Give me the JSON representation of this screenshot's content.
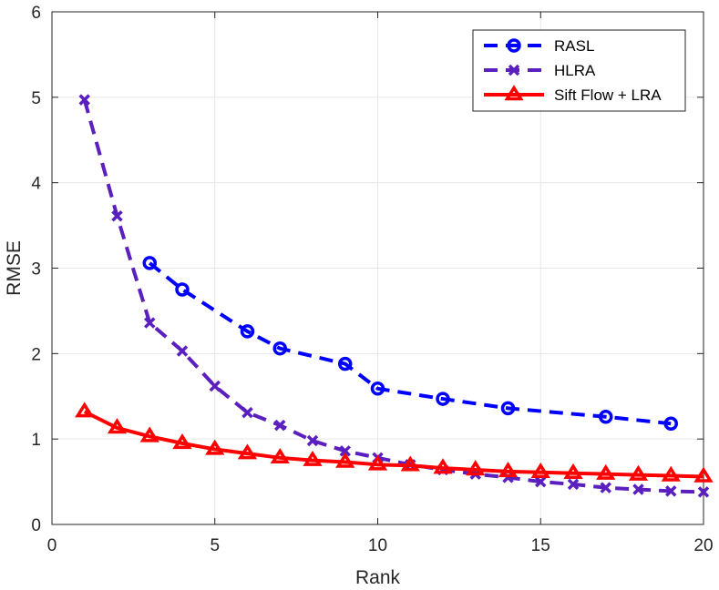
{
  "chart_data": {
    "type": "line",
    "title": "",
    "xlabel": "Rank",
    "ylabel": "RMSE",
    "xlim": [
      0,
      20
    ],
    "ylim": [
      0,
      6
    ],
    "xticks": [
      "0",
      "5",
      "10",
      "15",
      "20"
    ],
    "yticks": [
      "0",
      "1",
      "2",
      "3",
      "4",
      "5",
      "6"
    ],
    "grid": true,
    "legend_position": "top-right",
    "series": [
      {
        "name": "RASL",
        "color": "#0000ff",
        "line_style": "dashed",
        "marker": "circle",
        "x": [
          3,
          4,
          6,
          7,
          9,
          10,
          12,
          14,
          17,
          19
        ],
        "y": [
          3.06,
          2.75,
          2.26,
          2.06,
          1.88,
          1.59,
          1.47,
          1.36,
          1.26,
          1.18
        ]
      },
      {
        "name": "HLRA",
        "color": "#5b1fbf",
        "line_style": "dashed",
        "marker": "x",
        "x": [
          1,
          2,
          3,
          4,
          5,
          6,
          7,
          8,
          9,
          10,
          11,
          12,
          13,
          14,
          15,
          16,
          17,
          18,
          19,
          20
        ],
        "y": [
          4.97,
          3.61,
          2.36,
          2.03,
          1.62,
          1.31,
          1.16,
          0.98,
          0.86,
          0.78,
          0.7,
          0.64,
          0.59,
          0.55,
          0.5,
          0.47,
          0.43,
          0.41,
          0.39,
          0.38
        ]
      },
      {
        "name": "Sift Flow + LRA",
        "color": "#ff0000",
        "line_style": "solid",
        "marker": "triangle",
        "x": [
          1,
          2,
          3,
          4,
          5,
          6,
          7,
          8,
          9,
          10,
          11,
          12,
          13,
          14,
          15,
          16,
          17,
          18,
          19,
          20
        ],
        "y": [
          1.32,
          1.13,
          1.03,
          0.95,
          0.88,
          0.83,
          0.78,
          0.75,
          0.73,
          0.7,
          0.69,
          0.66,
          0.64,
          0.62,
          0.61,
          0.6,
          0.59,
          0.58,
          0.57,
          0.56
        ]
      }
    ]
  }
}
